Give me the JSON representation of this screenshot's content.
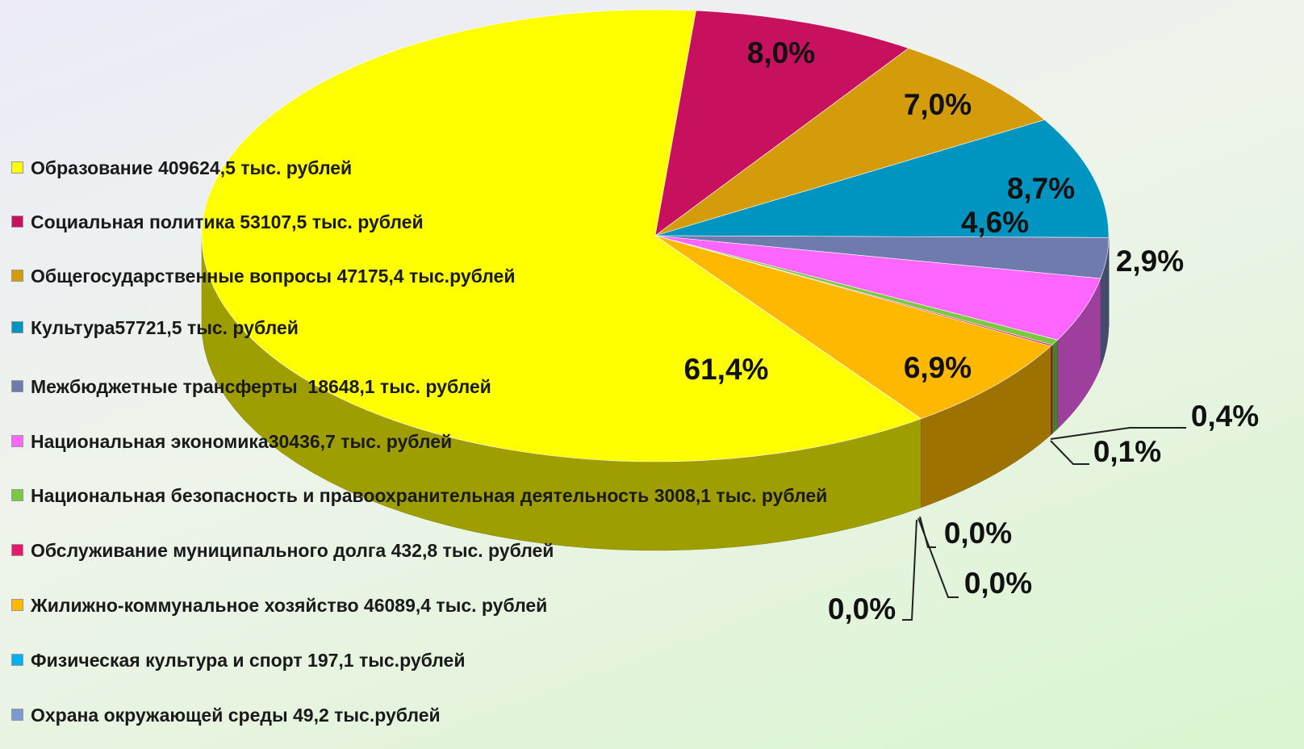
{
  "chart_data": {
    "type": "pie3d",
    "categories": [
      "Образование 409624,5 тыс. рублей",
      "Социальная политика 53107,5 тыс. рублей",
      "Общегосударственные вопросы 47175,4 тыс.рублей",
      "Культура57721,5 тыс. рублей",
      "Межбюджетные трансферты  18648,1 тыс. рублей",
      "Национальная экономика30436,7 тыс. рублей",
      "Национальная безопасность и правоохранительная деятельность 3008,1 тыс. рублей",
      "Обслуживание муниципального долга 432,8 тыс. рублей",
      "Жилижно-коммунальное хозяйство 46089,4 тыс. рублей",
      "Физическая культура и спорт 197,1 тыс.рублей",
      "Охрана окружающей среды 49,2 тыс.рублей"
    ],
    "values": [
      61.4,
      8.0,
      7.0,
      8.7,
      2.9,
      4.6,
      0.4,
      0.1,
      6.9,
      0.0,
      0.0
    ],
    "value_labels": [
      "61,4%",
      "8,0%",
      "7,0%",
      "8,7%",
      "2,9%",
      "4,6%",
      "0,4%",
      "0,1%",
      "6,9%",
      "0,0%",
      "0,0%"
    ],
    "colors": [
      "#ffff00",
      "#c8115e",
      "#d49b0a",
      "#0094c0",
      "#6f7aad",
      "#ff66ff",
      "#7ac943",
      "#e8186e",
      "#ffb800",
      "#00b0f0",
      "#7b9bd0"
    ],
    "annotations": [
      "0,0%"
    ],
    "legend": "left"
  }
}
